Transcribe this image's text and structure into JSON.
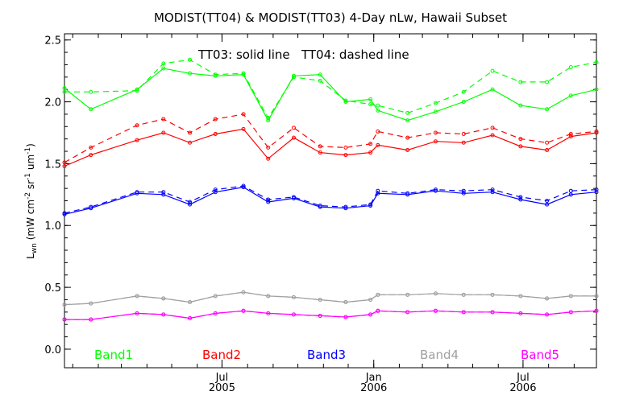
{
  "chart_data": {
    "type": "line",
    "title": "MODIST(TT04) & MODIST(TT03) 4-Day nLw, Hawaii Subset",
    "annotation": "TT03: solid line   TT04: dashed line",
    "ylabel_main": "L",
    "ylabel_sub": "wn",
    "ylabel_rest": " (mW cm",
    "ylabel_exp1": "-2",
    "ylabel_mid": " sr",
    "ylabel_exp2": "-1",
    "ylabel_end": " um",
    "ylabel_exp3": "-1",
    "ylabel_close": ")",
    "ylim": [
      -0.15,
      2.55
    ],
    "yticks": [
      "0.0",
      "0.5",
      "1.0",
      "1.5",
      "2.0",
      "2.5"
    ],
    "xlim": [
      "2004-12-22",
      "2006-09-28"
    ],
    "xticks": [
      {
        "date": "2005-07-01",
        "label1": "Jul",
        "label2": "2005"
      },
      {
        "date": "2006-01-01",
        "label1": "Jan",
        "label2": "2006"
      },
      {
        "date": "2006-07-01",
        "label1": "Jul",
        "label2": "2006"
      }
    ],
    "legend_placement": "bottom",
    "grid": false,
    "x": [
      "2004-12-22",
      "2005-01-23",
      "2005-03-20",
      "2005-04-21",
      "2005-05-23",
      "2005-06-23",
      "2005-07-27",
      "2005-08-26",
      "2005-09-26",
      "2005-10-28",
      "2005-11-28",
      "2005-12-28",
      "2006-01-06",
      "2006-02-11",
      "2006-03-17",
      "2006-04-20",
      "2006-05-25",
      "2006-06-28",
      "2006-07-30",
      "2006-08-28",
      "2006-09-28"
    ],
    "series": [
      {
        "name": "Band1",
        "color": "#00ff00",
        "solid": [
          2.11,
          1.94,
          2.1,
          2.27,
          2.23,
          2.21,
          2.22,
          1.85,
          2.21,
          2.22,
          2.0,
          2.02,
          1.93,
          1.85,
          1.92,
          2.0,
          2.1,
          1.97,
          1.94,
          2.05,
          2.1
        ],
        "dashed": [
          2.08,
          2.08,
          2.09,
          2.31,
          2.34,
          2.22,
          2.23,
          1.87,
          2.2,
          2.17,
          2.01,
          1.98,
          1.97,
          1.91,
          1.99,
          2.08,
          2.25,
          2.16,
          2.16,
          2.28,
          2.32
        ]
      },
      {
        "name": "Band2",
        "color": "#ff0000",
        "solid": [
          1.48,
          1.57,
          1.69,
          1.75,
          1.67,
          1.74,
          1.78,
          1.54,
          1.71,
          1.59,
          1.57,
          1.59,
          1.65,
          1.61,
          1.68,
          1.67,
          1.73,
          1.64,
          1.61,
          1.72,
          1.75
        ],
        "dashed": [
          1.51,
          1.63,
          1.81,
          1.86,
          1.75,
          1.86,
          1.9,
          1.63,
          1.79,
          1.64,
          1.63,
          1.66,
          1.76,
          1.71,
          1.75,
          1.74,
          1.79,
          1.7,
          1.67,
          1.74,
          1.76
        ]
      },
      {
        "name": "Band3",
        "color": "#0000ff",
        "solid": [
          1.09,
          1.14,
          1.26,
          1.25,
          1.17,
          1.27,
          1.31,
          1.19,
          1.22,
          1.15,
          1.14,
          1.16,
          1.26,
          1.25,
          1.28,
          1.26,
          1.27,
          1.21,
          1.17,
          1.25,
          1.27
        ],
        "dashed": [
          1.1,
          1.15,
          1.27,
          1.27,
          1.19,
          1.29,
          1.32,
          1.21,
          1.23,
          1.16,
          1.15,
          1.17,
          1.28,
          1.26,
          1.29,
          1.28,
          1.29,
          1.23,
          1.2,
          1.28,
          1.29
        ]
      },
      {
        "name": "Band4",
        "color": "#a0a0a0",
        "solid": [
          0.36,
          0.37,
          0.43,
          0.41,
          0.38,
          0.43,
          0.46,
          0.43,
          0.42,
          0.4,
          0.38,
          0.4,
          0.44,
          0.44,
          0.45,
          0.44,
          0.44,
          0.43,
          0.41,
          0.43,
          0.43
        ],
        "dashed": [
          0.36,
          0.37,
          0.43,
          0.41,
          0.38,
          0.43,
          0.46,
          0.43,
          0.42,
          0.4,
          0.38,
          0.4,
          0.44,
          0.44,
          0.45,
          0.44,
          0.44,
          0.43,
          0.41,
          0.43,
          0.43
        ]
      },
      {
        "name": "Band5",
        "color": "#ff00ff",
        "solid": [
          0.24,
          0.24,
          0.29,
          0.28,
          0.25,
          0.29,
          0.31,
          0.29,
          0.28,
          0.27,
          0.26,
          0.28,
          0.31,
          0.3,
          0.31,
          0.3,
          0.3,
          0.29,
          0.28,
          0.3,
          0.31
        ],
        "dashed": [
          0.24,
          0.24,
          0.29,
          0.28,
          0.25,
          0.29,
          0.31,
          0.29,
          0.28,
          0.27,
          0.26,
          0.28,
          0.31,
          0.3,
          0.31,
          0.3,
          0.3,
          0.29,
          0.28,
          0.3,
          0.31
        ]
      }
    ]
  }
}
